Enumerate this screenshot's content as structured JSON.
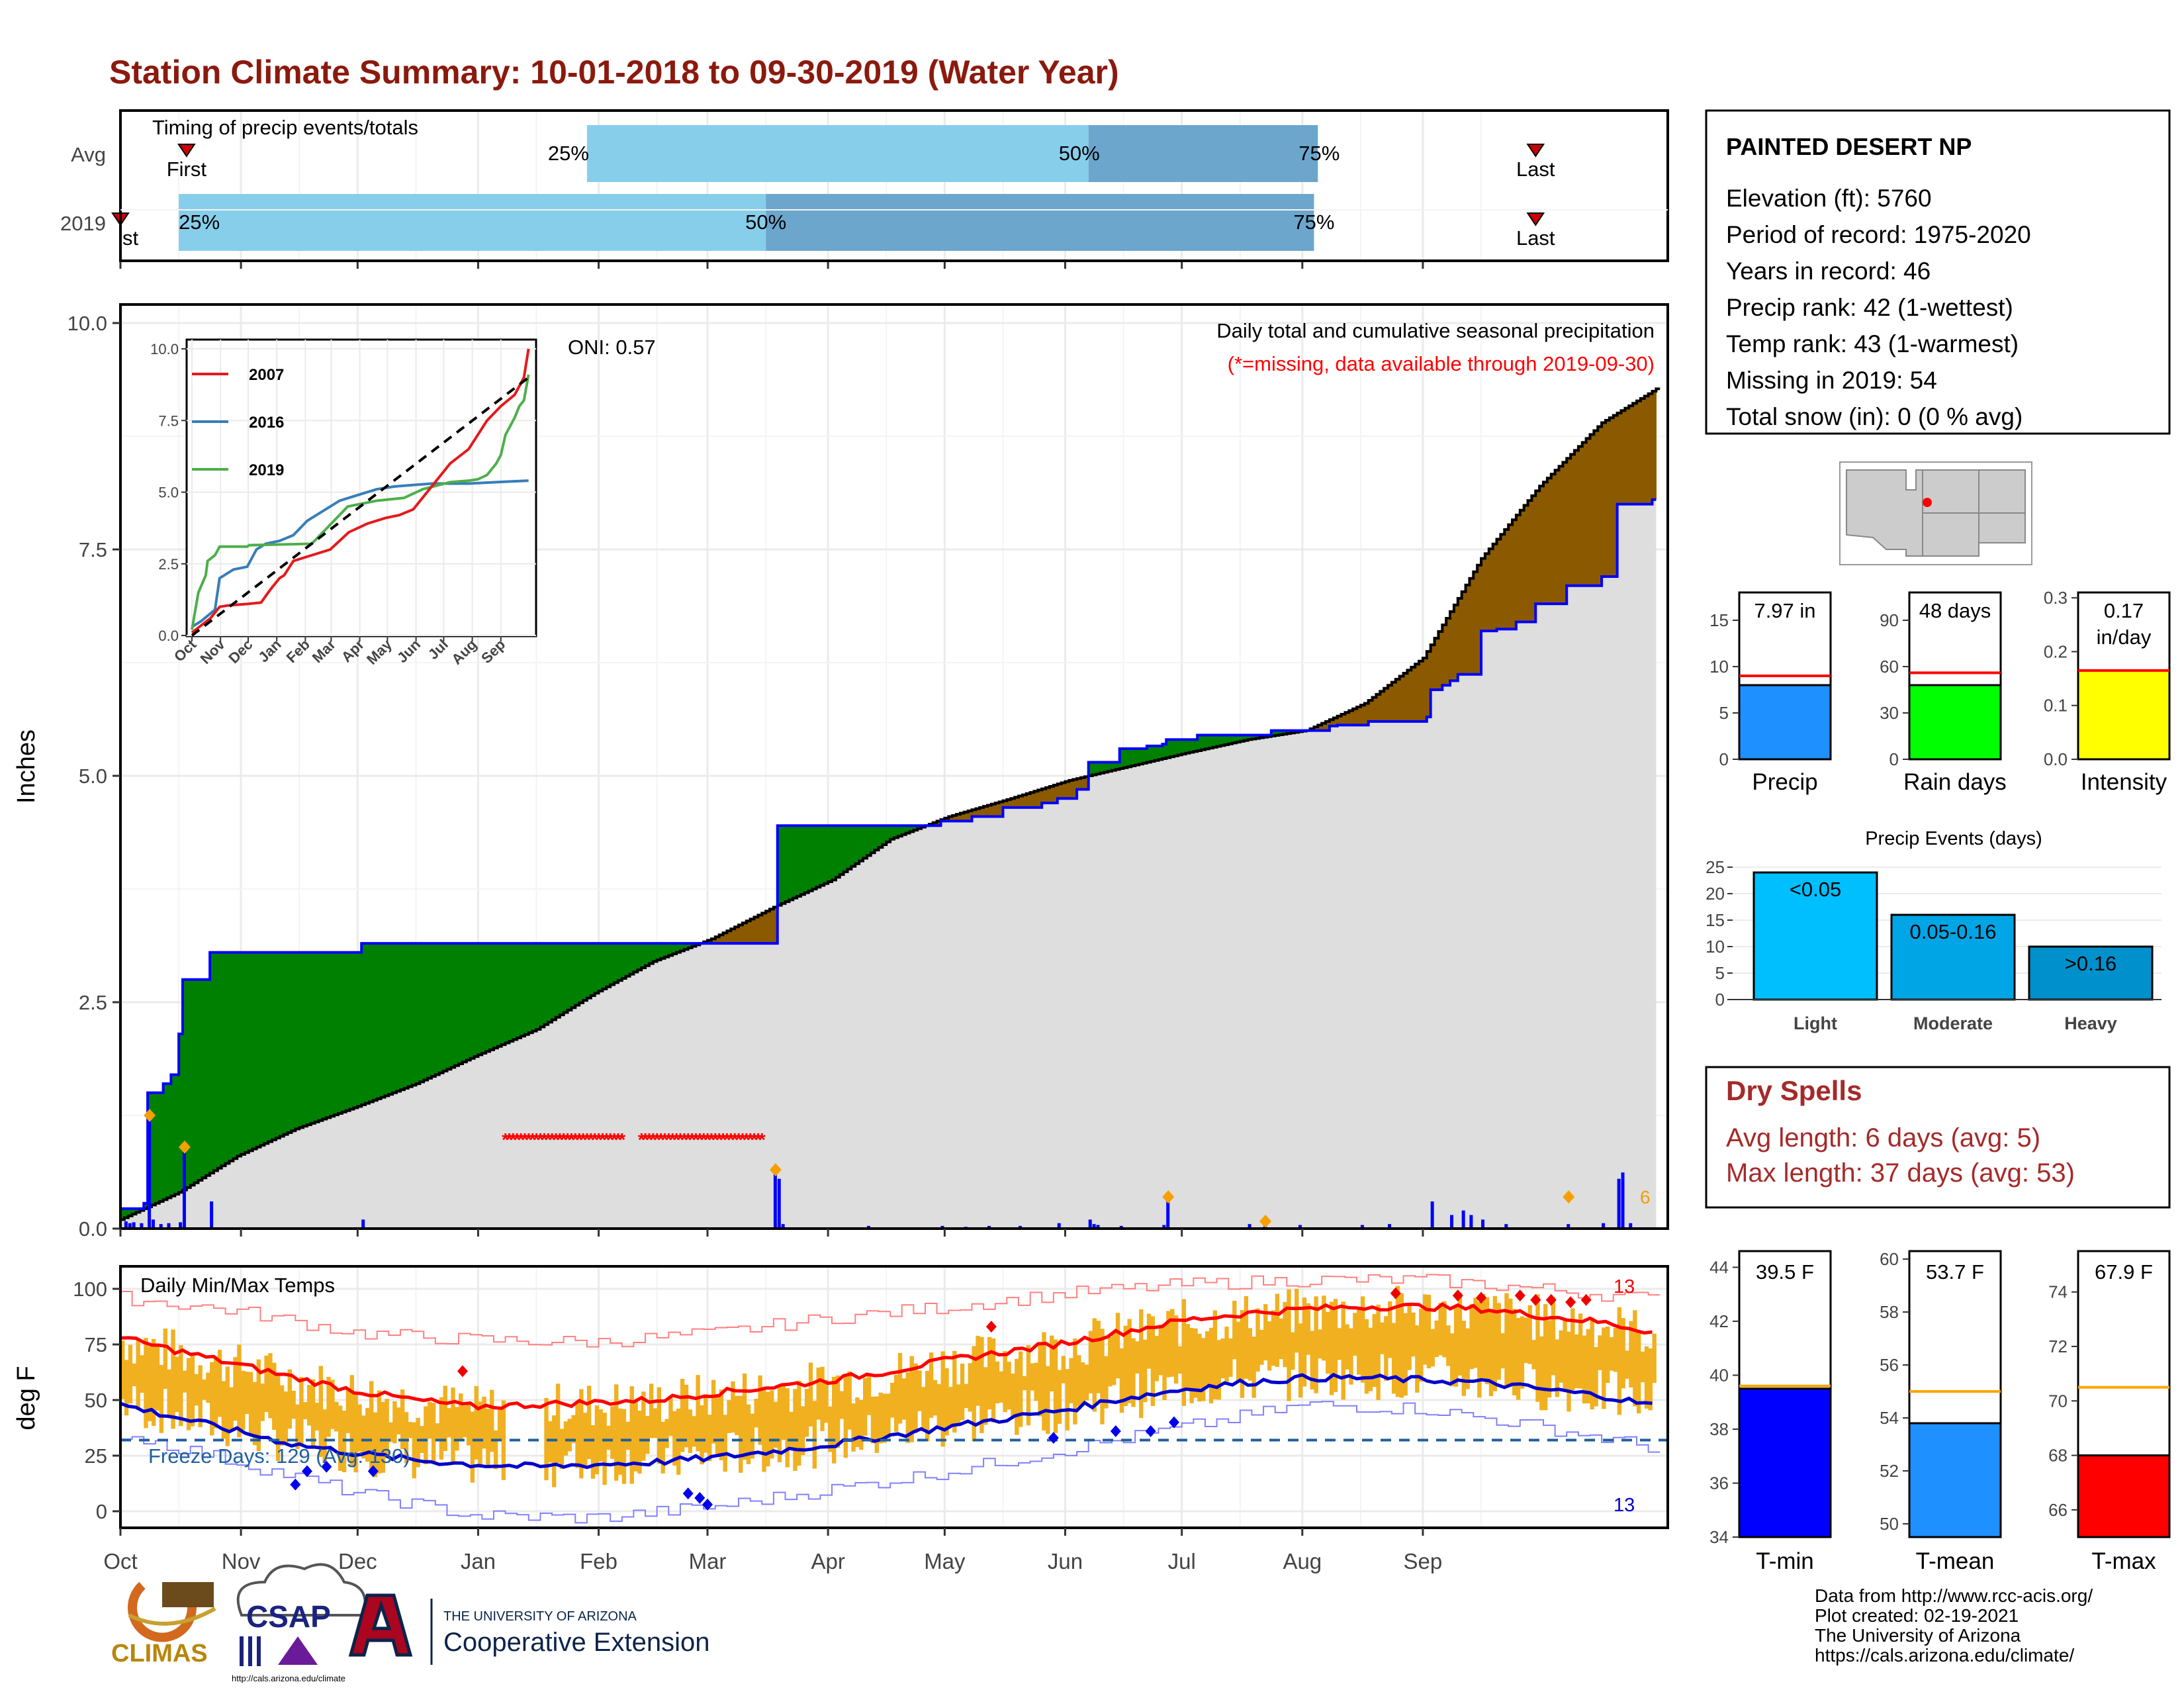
{
  "title": "Station Climate Summary: 10-01-2018 to 09-30-2019 (Water Year)",
  "colors": {
    "title": "#8b1a0e",
    "light_blue": "#87ceeb",
    "mid_blue": "#6ca6cd",
    "green": "#008000",
    "brown": "#8b5a00",
    "gray_fill": "#dedede",
    "precip_blue": "#1e90ff",
    "raindays_green": "#00ff00",
    "intensity_yellow": "#ffff00",
    "tmin_blue": "#0000ff",
    "tmean_blue": "#1e90ff",
    "tmax_red": "#ff0000",
    "orange": "#f0b020",
    "dry_red": "#a52a2a"
  },
  "months": [
    "Oct",
    "Nov",
    "Dec",
    "Jan",
    "Feb",
    "Mar",
    "Apr",
    "May",
    "Jun",
    "Jul",
    "Aug",
    "Sep"
  ],
  "timing": {
    "label": "Timing of precip events/totals",
    "rows": [
      {
        "label": "Avg",
        "first_day": 17,
        "last_day": 364,
        "p25_day": 120,
        "p50_day": 249,
        "p75_day": 308
      },
      {
        "label": "2019",
        "first_day": 0,
        "last_day": 364,
        "p25_day": 15,
        "p50_day": 166,
        "p75_day": 307
      }
    ],
    "marker_first": "First",
    "marker_last": "Last",
    "marker_first_cut": "st",
    "p25": "25%",
    "p50": "50%",
    "p75": "75%"
  },
  "precip": {
    "ylabel": "Inches",
    "ylim": [
      0,
      10
    ],
    "yticks": [
      "0.0",
      "2.5",
      "5.0",
      "7.5",
      "10.0"
    ],
    "title_line1": "Daily total and cumulative seasonal precipitation",
    "title_line2": "(*=missing, data available through 2019-09-30)",
    "oni": "ONI: 0.57",
    "missing_count": "6",
    "avg_cum": [
      [
        0,
        0.1
      ],
      [
        15,
        0.4
      ],
      [
        30,
        0.8
      ],
      [
        45,
        1.1
      ],
      [
        61,
        1.35
      ],
      [
        76,
        1.6
      ],
      [
        91,
        1.9
      ],
      [
        107,
        2.2
      ],
      [
        122,
        2.6
      ],
      [
        137,
        2.95
      ],
      [
        152,
        3.2
      ],
      [
        168,
        3.55
      ],
      [
        183,
        3.85
      ],
      [
        198,
        4.3
      ],
      [
        213,
        4.55
      ],
      [
        229,
        4.75
      ],
      [
        244,
        4.95
      ],
      [
        259,
        5.1
      ],
      [
        274,
        5.25
      ],
      [
        290,
        5.4
      ],
      [
        305,
        5.5
      ],
      [
        320,
        5.8
      ],
      [
        335,
        6.3
      ],
      [
        350,
        7.4
      ],
      [
        365,
        8.2
      ],
      [
        381,
        8.9
      ],
      [
        396,
        9.3
      ]
    ],
    "cum_2019": [
      [
        0,
        0.22
      ],
      [
        6,
        0.28
      ],
      [
        7,
        1.5
      ],
      [
        11,
        1.6
      ],
      [
        13,
        1.7
      ],
      [
        15,
        2.15
      ],
      [
        16,
        2.75
      ],
      [
        23,
        3.05
      ],
      [
        61,
        3.05
      ],
      [
        62,
        3.15
      ],
      [
        129,
        3.15
      ],
      [
        130,
        3.15
      ],
      [
        168,
        3.15
      ],
      [
        169,
        4.45
      ],
      [
        211,
        4.5
      ],
      [
        219,
        4.55
      ],
      [
        227,
        4.65
      ],
      [
        237,
        4.7
      ],
      [
        241,
        4.75
      ],
      [
        246,
        4.85
      ],
      [
        249,
        5.15
      ],
      [
        257,
        5.3
      ],
      [
        264,
        5.33
      ],
      [
        268,
        5.35
      ],
      [
        269,
        5.4
      ],
      [
        277,
        5.45
      ],
      [
        294,
        5.45
      ],
      [
        296,
        5.5
      ],
      [
        305,
        5.5
      ],
      [
        311,
        5.55
      ],
      [
        313,
        5.56
      ],
      [
        321,
        5.6
      ],
      [
        328,
        5.6
      ],
      [
        336,
        5.65
      ],
      [
        337,
        5.95
      ],
      [
        340,
        6.0
      ],
      [
        342,
        6.05
      ],
      [
        344,
        6.12
      ],
      [
        350,
        6.6
      ],
      [
        354,
        6.62
      ],
      [
        359,
        6.7
      ],
      [
        364,
        6.9
      ],
      [
        372,
        7.1
      ],
      [
        381,
        7.2
      ],
      [
        385,
        8.0
      ],
      [
        394,
        8.05
      ]
    ],
    "daily": [
      [
        1,
        0.08
      ],
      [
        2,
        0.06
      ],
      [
        3,
        0.07
      ],
      [
        5,
        0.06
      ],
      [
        7,
        1.25
      ],
      [
        8,
        0.1
      ],
      [
        10,
        0.05
      ],
      [
        12,
        0.06
      ],
      [
        15,
        0.07
      ],
      [
        16,
        0.85
      ],
      [
        23,
        0.3
      ],
      [
        62,
        0.1
      ],
      [
        168,
        0.6
      ],
      [
        169,
        0.55
      ],
      [
        170,
        0.05
      ],
      [
        192,
        0.03
      ],
      [
        211,
        0.03
      ],
      [
        217,
        0.02
      ],
      [
        223,
        0.03
      ],
      [
        231,
        0.03
      ],
      [
        241,
        0.06
      ],
      [
        249,
        0.1
      ],
      [
        250,
        0.05
      ],
      [
        251,
        0.04
      ],
      [
        257,
        0.03
      ],
      [
        268,
        0.04
      ],
      [
        269,
        0.3
      ],
      [
        290,
        0.05
      ],
      [
        294,
        0.03
      ],
      [
        303,
        0.04
      ],
      [
        319,
        0.04
      ],
      [
        326,
        0.05
      ],
      [
        337,
        0.3
      ],
      [
        342,
        0.15
      ],
      [
        345,
        0.2
      ],
      [
        347,
        0.15
      ],
      [
        350,
        0.1
      ],
      [
        356,
        0.05
      ],
      [
        372,
        0.05
      ],
      [
        381,
        0.06
      ],
      [
        385,
        0.55
      ],
      [
        386,
        0.62
      ],
      [
        388,
        0.06
      ]
    ],
    "orange_diamonds": [
      [
        7,
        1.25
      ],
      [
        16,
        0.9
      ],
      [
        168,
        0.65
      ],
      [
        269,
        0.35
      ],
      [
        294,
        0.08
      ],
      [
        372,
        0.35
      ]
    ],
    "missing_ranges": [
      [
        99,
        129
      ],
      [
        134,
        165
      ]
    ],
    "missing_y": 1.0
  },
  "inset": {
    "yticks": [
      "0.0",
      "2.5",
      "5.0",
      "7.5",
      "10.0"
    ],
    "months": [
      "Oct",
      "Nov",
      "Dec",
      "Jan",
      "Feb",
      "Mar",
      "Apr",
      "May",
      "Jun",
      "Jul",
      "Aug",
      "Sep"
    ],
    "legend": [
      {
        "name": "2007",
        "color": "#e41a1c"
      },
      {
        "name": "2016",
        "color": "#377eb8"
      },
      {
        "name": "2019",
        "color": "#4daf4a"
      }
    ],
    "series_2007": [
      [
        0,
        0.1
      ],
      [
        20,
        0.6
      ],
      [
        30,
        1.0
      ],
      [
        40,
        1.05
      ],
      [
        60,
        1.1
      ],
      [
        75,
        1.15
      ],
      [
        85,
        1.6
      ],
      [
        95,
        2.0
      ],
      [
        100,
        2.1
      ],
      [
        110,
        2.6
      ],
      [
        130,
        2.8
      ],
      [
        150,
        3.0
      ],
      [
        170,
        3.6
      ],
      [
        190,
        3.9
      ],
      [
        210,
        4.1
      ],
      [
        225,
        4.2
      ],
      [
        240,
        4.4
      ],
      [
        260,
        5.2
      ],
      [
        280,
        6.0
      ],
      [
        300,
        6.5
      ],
      [
        320,
        7.5
      ],
      [
        335,
        8.0
      ],
      [
        350,
        8.4
      ],
      [
        360,
        9.0
      ],
      [
        365,
        10.0
      ]
    ],
    "series_2016": [
      [
        0,
        0.3
      ],
      [
        10,
        0.5
      ],
      [
        25,
        0.9
      ],
      [
        30,
        2.0
      ],
      [
        45,
        2.3
      ],
      [
        60,
        2.4
      ],
      [
        70,
        3.0
      ],
      [
        80,
        3.2
      ],
      [
        95,
        3.3
      ],
      [
        110,
        3.5
      ],
      [
        125,
        4.0
      ],
      [
        140,
        4.3
      ],
      [
        160,
        4.7
      ],
      [
        180,
        4.9
      ],
      [
        200,
        5.1
      ],
      [
        220,
        5.2
      ],
      [
        260,
        5.3
      ],
      [
        300,
        5.3
      ],
      [
        330,
        5.35
      ],
      [
        365,
        5.4
      ]
    ],
    "series_2019": [
      [
        0,
        0.2
      ],
      [
        7,
        1.5
      ],
      [
        15,
        2.1
      ],
      [
        17,
        2.6
      ],
      [
        25,
        2.8
      ],
      [
        30,
        3.1
      ],
      [
        60,
        3.1
      ],
      [
        62,
        3.15
      ],
      [
        130,
        3.2
      ],
      [
        169,
        4.5
      ],
      [
        200,
        4.7
      ],
      [
        230,
        4.8
      ],
      [
        250,
        5.1
      ],
      [
        280,
        5.35
      ],
      [
        300,
        5.4
      ],
      [
        310,
        5.45
      ],
      [
        320,
        5.6
      ],
      [
        330,
        6.0
      ],
      [
        335,
        6.3
      ],
      [
        340,
        7.0
      ],
      [
        350,
        7.6
      ],
      [
        355,
        8.0
      ],
      [
        360,
        8.2
      ],
      [
        365,
        9.1
      ]
    ],
    "avg_line": [
      [
        0,
        0
      ],
      [
        365,
        9.0
      ]
    ]
  },
  "station": {
    "name": "PAINTED DESERT NP",
    "lines": [
      "Elevation (ft): 5760",
      "Period of record: 1975-2020",
      "Years in record: 46",
      "Precip rank: 42 (1-wettest)",
      "Temp rank: 43 (1-warmest)",
      "Missing in 2019: 54",
      "Total snow (in): 0 (0 % avg)"
    ]
  },
  "summary_bars": [
    {
      "label": "Precip",
      "value_text": "7.97 in",
      "value": 8.0,
      "avg": 9.0,
      "ylim": [
        0,
        18
      ],
      "yticks": [
        0,
        5,
        10,
        15
      ],
      "color": "#1e90ff"
    },
    {
      "label": "Rain days",
      "value_text": "48 days",
      "value": 48,
      "avg": 56,
      "ylim": [
        0,
        108
      ],
      "yticks": [
        0,
        30,
        60,
        90
      ],
      "color": "#00ff00"
    },
    {
      "label": "Intensity",
      "value_text": "0.17",
      "value_text2": "in/day",
      "value": 0.165,
      "avg": 0.165,
      "ylim": [
        0,
        0.31
      ],
      "yticks": [
        "0.0",
        "0.1",
        "0.2",
        "0.3"
      ],
      "color": "#ffff00"
    }
  ],
  "events": {
    "title": "Precip Events (days)",
    "categories": [
      "Light",
      "Moderate",
      "Heavy"
    ],
    "values": [
      24,
      16,
      10
    ],
    "bar_labels": [
      "<0.05",
      "0.05-0.16",
      ">0.16"
    ],
    "ylim": [
      0,
      25
    ],
    "yticks": [
      0,
      5,
      10,
      15,
      20,
      25
    ],
    "colors": [
      "#00bfff",
      "#00a5e6",
      "#0090cc"
    ]
  },
  "dry_spells": {
    "title": "Dry Spells",
    "lines": [
      "Avg length: 6 days (avg: 5)",
      "Max length: 37 days (avg: 53)"
    ]
  },
  "temps": {
    "ylabel": "deg F",
    "label": "Daily Min/Max Temps",
    "freeze": "Freeze Days: 129 (Avg: 130)",
    "freeze_line": 32,
    "ylim": [
      -10,
      108
    ],
    "yticks": [
      0,
      25,
      50,
      75,
      100
    ],
    "count_top": "13",
    "count_bottom": "13",
    "avg_max": [
      [
        0,
        78
      ],
      [
        15,
        72
      ],
      [
        30,
        66
      ],
      [
        45,
        60
      ],
      [
        61,
        54
      ],
      [
        76,
        50
      ],
      [
        91,
        47
      ],
      [
        107,
        48
      ],
      [
        122,
        49
      ],
      [
        137,
        50
      ],
      [
        152,
        53
      ],
      [
        168,
        56
      ],
      [
        183,
        59
      ],
      [
        198,
        63
      ],
      [
        213,
        68
      ],
      [
        229,
        72
      ],
      [
        244,
        76
      ],
      [
        259,
        81
      ],
      [
        274,
        86
      ],
      [
        290,
        89
      ],
      [
        305,
        91
      ],
      [
        320,
        92
      ],
      [
        335,
        92
      ],
      [
        350,
        91
      ],
      [
        365,
        88
      ],
      [
        381,
        85
      ],
      [
        396,
        80
      ]
    ],
    "avg_min": [
      [
        0,
        48
      ],
      [
        15,
        42
      ],
      [
        30,
        36
      ],
      [
        45,
        30
      ],
      [
        61,
        26
      ],
      [
        76,
        23
      ],
      [
        91,
        21
      ],
      [
        107,
        20
      ],
      [
        122,
        21
      ],
      [
        137,
        22
      ],
      [
        152,
        24
      ],
      [
        168,
        27
      ],
      [
        183,
        30
      ],
      [
        198,
        34
      ],
      [
        213,
        38
      ],
      [
        229,
        42
      ],
      [
        244,
        46
      ],
      [
        259,
        51
      ],
      [
        274,
        55
      ],
      [
        290,
        58
      ],
      [
        305,
        60
      ],
      [
        320,
        60
      ],
      [
        335,
        59
      ],
      [
        350,
        58
      ],
      [
        365,
        55
      ],
      [
        381,
        52
      ],
      [
        396,
        47
      ]
    ],
    "rec_max": [
      [
        0,
        96
      ],
      [
        30,
        90
      ],
      [
        61,
        80
      ],
      [
        91,
        77
      ],
      [
        122,
        76
      ],
      [
        152,
        80
      ],
      [
        183,
        87
      ],
      [
        213,
        92
      ],
      [
        244,
        98
      ],
      [
        274,
        102
      ],
      [
        305,
        104
      ],
      [
        335,
        104
      ],
      [
        365,
        100
      ],
      [
        396,
        95
      ]
    ],
    "rec_min": [
      [
        0,
        35
      ],
      [
        30,
        22
      ],
      [
        61,
        8
      ],
      [
        91,
        -2
      ],
      [
        122,
        -3
      ],
      [
        152,
        2
      ],
      [
        183,
        10
      ],
      [
        213,
        18
      ],
      [
        244,
        28
      ],
      [
        274,
        38
      ],
      [
        305,
        48
      ],
      [
        335,
        46
      ],
      [
        365,
        38
      ],
      [
        396,
        28
      ]
    ],
    "red_diamonds": [
      [
        88,
        63
      ],
      [
        224,
        83
      ],
      [
        328,
        98
      ],
      [
        344,
        97
      ],
      [
        350,
        96
      ],
      [
        360,
        97
      ],
      [
        364,
        95
      ],
      [
        368,
        95
      ],
      [
        373,
        94
      ],
      [
        377,
        95
      ]
    ],
    "blue_diamonds": [
      [
        45,
        12
      ],
      [
        48,
        18
      ],
      [
        53,
        20
      ],
      [
        65,
        18
      ],
      [
        146,
        8
      ],
      [
        149,
        6
      ],
      [
        151,
        3
      ],
      [
        240,
        33
      ],
      [
        256,
        36
      ],
      [
        265,
        36
      ],
      [
        271,
        40
      ]
    ],
    "freeze_count_placeholder": ""
  },
  "temp_bars": [
    {
      "label": "T-min",
      "value_text": "39.5 F",
      "value": 39.5,
      "avg": 39.6,
      "ylim": [
        34,
        44.6
      ],
      "yticks": [
        34,
        36,
        38,
        40,
        42,
        44
      ],
      "color": "#0000ff"
    },
    {
      "label": "T-mean",
      "value_text": "53.7 F",
      "value": 53.8,
      "avg": 55.0,
      "ylim": [
        49.5,
        60.3
      ],
      "yticks": [
        50,
        52,
        54,
        56,
        58,
        60
      ],
      "color": "#1e90ff"
    },
    {
      "label": "T-max",
      "value_text": "67.9 F",
      "value": 68.0,
      "avg": 70.5,
      "ylim": [
        65,
        75.5
      ],
      "yticks": [
        66,
        68,
        70,
        72,
        74
      ],
      "color": "#ff0000"
    }
  ],
  "footer": {
    "lines": [
      "Data from http://www.rcc-acis.org/",
      "Plot created: 02-19-2021",
      "The University of Arizona",
      "https://cals.arizona.edu/climate/"
    ],
    "climas": "CLIMAS",
    "csap": "CSAP",
    "csap_url": "http://cals.arizona.edu/climate",
    "ua_small": "THE UNIVERSITY OF ARIZONA",
    "ua_big": "Cooperative Extension"
  }
}
